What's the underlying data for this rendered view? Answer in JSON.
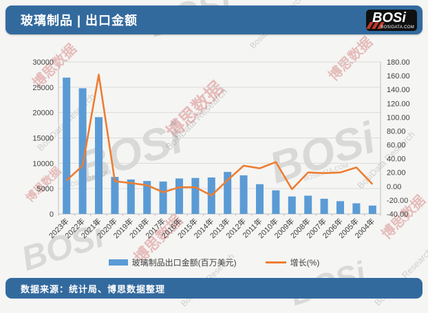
{
  "header": {
    "title": "玻璃制品 | 出口金额",
    "logo": {
      "text": "BOSi",
      "domain": "BOSIDATA.COM"
    }
  },
  "footer": {
    "source": "数据来源：统计局、博思数据整理"
  },
  "legend": [
    {
      "label": "玻璃制品出口金额(百万美元)",
      "type": "bar",
      "color": "#5B9BD5"
    },
    {
      "label": "增长(%)",
      "type": "line",
      "color": "#ED7D31"
    }
  ],
  "watermarks": {
    "red_text": "博思数据",
    "gray_text": "BosiData Research",
    "logo_text": "BOSi",
    "logo_domain": "BOSIDATA.COM"
  },
  "chart_data": {
    "type": "bar",
    "subtype": "combo bar+line, dual axis",
    "categories": [
      "2023年",
      "2022年",
      "2021年",
      "2020年",
      "2019年",
      "2018年",
      "2017年",
      "2016年",
      "2015年",
      "2014年",
      "2013年",
      "2012年",
      "2011年",
      "2010年",
      "2009年",
      "2008年",
      "2007年",
      "2006年",
      "2005年",
      "2004年"
    ],
    "series": [
      {
        "name": "玻璃制品出口金额(百万美元)",
        "type": "bar",
        "axis": "left",
        "color": "#5B9BD5",
        "values": [
          26900,
          24800,
          19100,
          7300,
          6800,
          6500,
          6400,
          7000,
          7100,
          7200,
          8300,
          7620,
          5870,
          4660,
          3450,
          3600,
          3000,
          2520,
          2100,
          1650
        ]
      },
      {
        "name": "增长(%)",
        "type": "line",
        "axis": "right",
        "color": "#ED7D31",
        "values": [
          8.5,
          29.8,
          161.6,
          7.4,
          4.6,
          1.6,
          -8.6,
          -1.4,
          -1.4,
          -13.3,
          8.9,
          29.8,
          26.0,
          35.1,
          -4.2,
          20.0,
          19.0,
          20.0,
          27.3,
          3.0
        ]
      }
    ],
    "left_axis": {
      "min": 0,
      "max": 30000,
      "step": 5000
    },
    "right_axis": {
      "min": -40,
      "max": 180,
      "step": 20,
      "decimals": 2
    },
    "grid": "horizontal",
    "legend_position": "bottom",
    "x_label_rotation": -45
  }
}
